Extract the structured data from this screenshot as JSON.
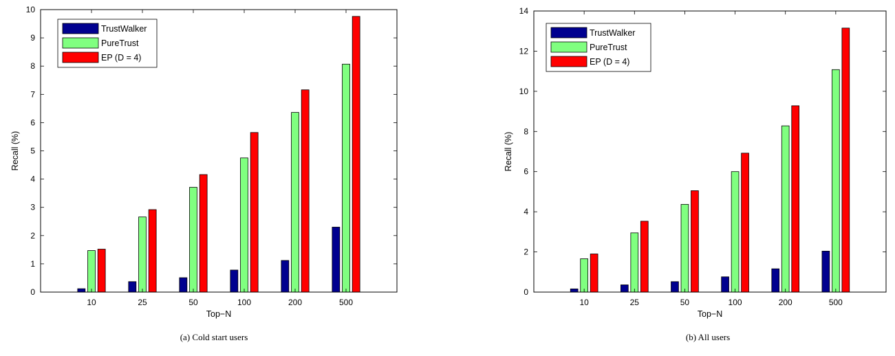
{
  "chart_data": [
    {
      "type": "bar",
      "caption": "(a) Cold start users",
      "xlabel": "Top−N",
      "ylabel": "Recall (%)",
      "categories": [
        "10",
        "25",
        "50",
        "100",
        "200",
        "500"
      ],
      "ylim": [
        0,
        10
      ],
      "yticks": [
        "0",
        "1",
        "2",
        "3",
        "4",
        "5",
        "6",
        "7",
        "8",
        "9",
        "10"
      ],
      "legend_position": "top-left",
      "grid": false,
      "series": [
        {
          "name": "TrustWalker",
          "color": "#00008f",
          "values": [
            0.12,
            0.37,
            0.51,
            0.78,
            1.12,
            2.3
          ]
        },
        {
          "name": "PureTrust",
          "color": "#80ff80",
          "values": [
            1.47,
            2.66,
            3.71,
            4.75,
            6.36,
            8.07
          ]
        },
        {
          "name": "EP (D = 4)",
          "color": "#ff0000",
          "values": [
            1.52,
            2.92,
            4.16,
            5.65,
            7.16,
            9.76
          ]
        }
      ]
    },
    {
      "type": "bar",
      "caption": "(b) All users",
      "xlabel": "Top−N",
      "ylabel": "Recall (%)",
      "categories": [
        "10",
        "25",
        "50",
        "100",
        "200",
        "500"
      ],
      "ylim": [
        0,
        14
      ],
      "yticks": [
        "0",
        "2",
        "4",
        "6",
        "8",
        "10",
        "12",
        "14"
      ],
      "legend_position": "top-left",
      "grid": false,
      "series": [
        {
          "name": "TrustWalker",
          "color": "#00008f",
          "values": [
            0.16,
            0.36,
            0.52,
            0.76,
            1.16,
            2.04
          ]
        },
        {
          "name": "PureTrust",
          "color": "#80ff80",
          "values": [
            1.66,
            2.95,
            4.37,
            6.0,
            8.28,
            11.08
          ]
        },
        {
          "name": "EP (D = 4)",
          "color": "#ff0000",
          "values": [
            1.9,
            3.53,
            5.05,
            6.92,
            9.28,
            13.15
          ]
        }
      ]
    }
  ]
}
